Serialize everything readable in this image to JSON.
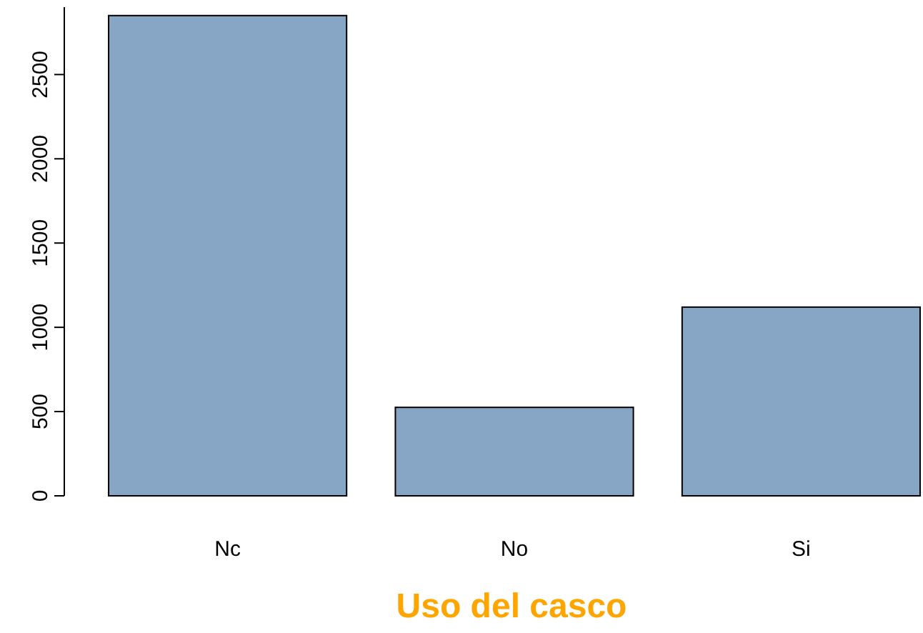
{
  "chart_data": {
    "type": "bar",
    "xlabel": "Uso del casco",
    "categories": [
      "Nc",
      "No",
      "Si"
    ],
    "values": [
      2850,
      525,
      1120
    ],
    "color": "#87a5c4",
    "ylim": [
      0,
      2900
    ],
    "yticks": [
      0,
      500,
      1000,
      1500,
      2000,
      2500
    ],
    "grid": false
  }
}
